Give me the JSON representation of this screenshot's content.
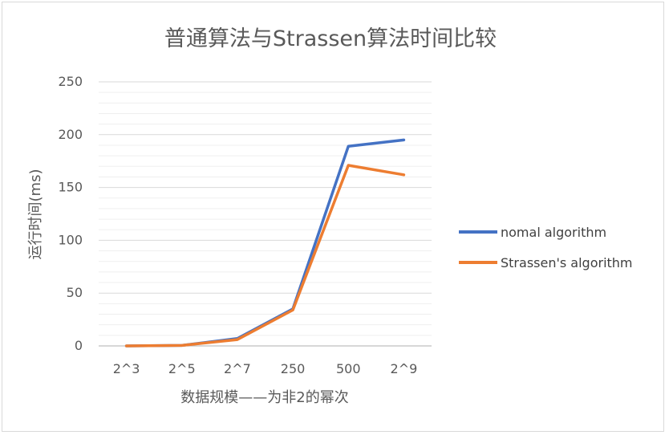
{
  "chart_data": {
    "type": "line",
    "title": "普通算法与Strassen算法时间比较",
    "xlabel": "数据规模——为非2的幂次",
    "ylabel": "运行时间(ms)",
    "categories": [
      "2^3",
      "2^5",
      "2^7",
      "250",
      "500",
      "2^9"
    ],
    "ylim": [
      0,
      250
    ],
    "yticks": [
      0,
      50,
      100,
      150,
      200,
      250
    ],
    "grid": true,
    "legend": "right",
    "series": [
      {
        "name": "nomal algorithm",
        "color": "#4472c4",
        "values": [
          0,
          0.5,
          7,
          35,
          189,
          195
        ]
      },
      {
        "name": "Strassen's algorithm",
        "color": "#ed7d31",
        "values": [
          0,
          0.5,
          6,
          34,
          171,
          162
        ]
      }
    ]
  }
}
